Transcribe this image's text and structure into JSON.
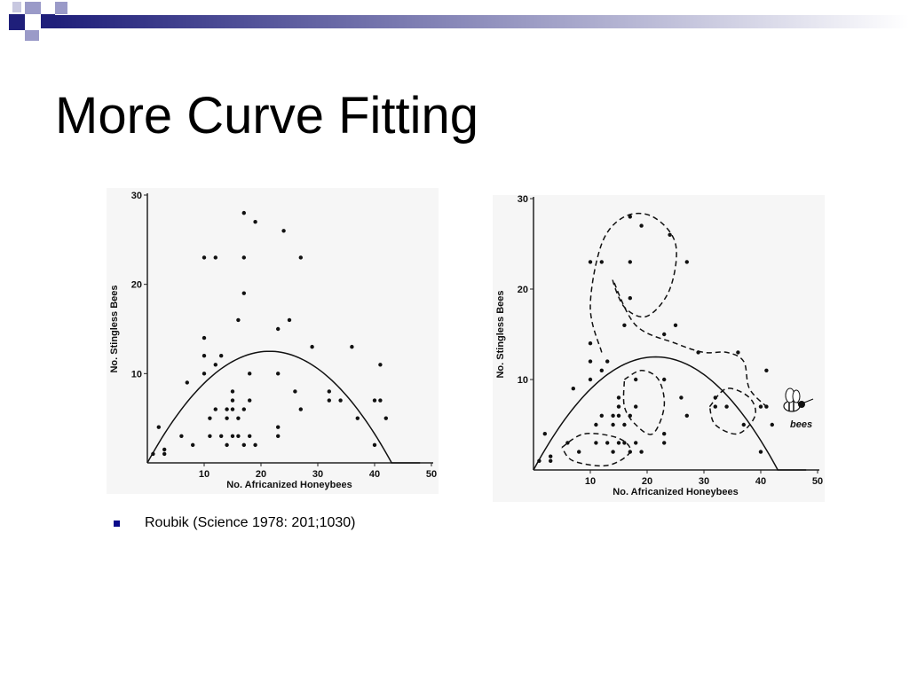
{
  "slide": {
    "title": "More Curve Fitting",
    "bullet_text": "Roubik (Science 1978: 201;1030)",
    "colors": {
      "accent_dark": "#1f1f7a",
      "accent_light": "#9a9ac8",
      "bullet": "#0a0a8a"
    }
  },
  "chart_data": [
    {
      "type": "scatter",
      "title": "",
      "xlabel": "No. Africanized Honeybees",
      "ylabel": "No. Stingless Bees",
      "xlim": [
        0,
        50
      ],
      "ylim": [
        0,
        30
      ],
      "x_ticks": [
        "10",
        "20",
        "30",
        "40",
        "50"
      ],
      "y_ticks": [
        "10",
        "20",
        "30"
      ],
      "series": [
        {
          "type": "scatter",
          "points": [
            [
              1,
              1
            ],
            [
              2,
              4
            ],
            [
              3,
              1
            ],
            [
              3,
              1.5
            ],
            [
              6,
              3
            ],
            [
              7,
              9
            ],
            [
              8,
              2
            ],
            [
              10,
              10
            ],
            [
              10,
              12
            ],
            [
              10,
              14
            ],
            [
              10,
              23
            ],
            [
              11,
              3
            ],
            [
              11,
              5
            ],
            [
              12,
              6
            ],
            [
              12,
              11
            ],
            [
              12,
              23
            ],
            [
              13,
              12
            ],
            [
              13,
              3
            ],
            [
              14,
              2
            ],
            [
              14,
              5
            ],
            [
              14,
              6
            ],
            [
              15,
              3
            ],
            [
              15,
              6
            ],
            [
              15,
              7
            ],
            [
              15,
              8
            ],
            [
              16,
              3
            ],
            [
              16,
              5
            ],
            [
              16,
              16
            ],
            [
              17,
              2
            ],
            [
              17,
              6
            ],
            [
              17,
              19
            ],
            [
              17,
              23
            ],
            [
              17,
              28
            ],
            [
              18,
              3
            ],
            [
              18,
              7
            ],
            [
              18,
              10
            ],
            [
              19,
              2
            ],
            [
              19,
              27
            ],
            [
              23,
              3
            ],
            [
              23,
              4
            ],
            [
              23,
              10
            ],
            [
              23,
              15
            ],
            [
              24,
              26
            ],
            [
              25,
              16
            ],
            [
              26,
              8
            ],
            [
              27,
              6
            ],
            [
              27,
              23
            ],
            [
              29,
              13
            ],
            [
              32,
              7
            ],
            [
              32,
              8
            ],
            [
              34,
              7
            ],
            [
              36,
              13
            ],
            [
              37,
              5
            ],
            [
              40,
              2
            ],
            [
              40,
              7
            ],
            [
              41,
              7
            ],
            [
              41,
              11
            ],
            [
              42,
              5
            ]
          ]
        },
        {
          "type": "line",
          "curve": "parabola",
          "vertex": [
            21.5,
            12.5
          ],
          "x_range": [
            0,
            48
          ]
        }
      ]
    },
    {
      "type": "scatter",
      "title": "",
      "xlabel": "No. Africanized Honeybees",
      "ylabel": "No. Stingless Bees",
      "xlim": [
        0,
        50
      ],
      "ylim": [
        0,
        30
      ],
      "x_ticks": [
        "10",
        "20",
        "30",
        "40",
        "50"
      ],
      "y_ticks": [
        "10",
        "20",
        "30"
      ],
      "annotation": "bees",
      "series": [
        {
          "type": "scatter",
          "points": [
            [
              1,
              1
            ],
            [
              2,
              4
            ],
            [
              3,
              1
            ],
            [
              3,
              1.5
            ],
            [
              6,
              3
            ],
            [
              7,
              9
            ],
            [
              8,
              2
            ],
            [
              10,
              10
            ],
            [
              10,
              12
            ],
            [
              10,
              14
            ],
            [
              10,
              23
            ],
            [
              11,
              3
            ],
            [
              11,
              5
            ],
            [
              12,
              6
            ],
            [
              12,
              11
            ],
            [
              12,
              23
            ],
            [
              13,
              12
            ],
            [
              13,
              3
            ],
            [
              14,
              2
            ],
            [
              14,
              5
            ],
            [
              14,
              6
            ],
            [
              15,
              3
            ],
            [
              15,
              6
            ],
            [
              15,
              7
            ],
            [
              15,
              8
            ],
            [
              16,
              3
            ],
            [
              16,
              5
            ],
            [
              16,
              16
            ],
            [
              17,
              2
            ],
            [
              17,
              6
            ],
            [
              17,
              19
            ],
            [
              17,
              23
            ],
            [
              17,
              28
            ],
            [
              18,
              3
            ],
            [
              18,
              7
            ],
            [
              18,
              10
            ],
            [
              19,
              2
            ],
            [
              19,
              27
            ],
            [
              23,
              3
            ],
            [
              23,
              4
            ],
            [
              23,
              10
            ],
            [
              23,
              15
            ],
            [
              24,
              26
            ],
            [
              25,
              16
            ],
            [
              26,
              8
            ],
            [
              27,
              6
            ],
            [
              27,
              23
            ],
            [
              29,
              13
            ],
            [
              32,
              7
            ],
            [
              32,
              8
            ],
            [
              34,
              7
            ],
            [
              36,
              13
            ],
            [
              37,
              5
            ],
            [
              40,
              2
            ],
            [
              40,
              7
            ],
            [
              41,
              7
            ],
            [
              41,
              11
            ],
            [
              42,
              5
            ]
          ]
        },
        {
          "type": "line",
          "curve": "parabola",
          "vertex": [
            21.5,
            12.5
          ],
          "x_range": [
            0,
            48
          ]
        },
        {
          "type": "line",
          "style": "dashed",
          "shape": "figure-eight loop",
          "points": [
            [
              12,
              13
            ],
            [
              10,
              18
            ],
            [
              12,
              25
            ],
            [
              16,
              28
            ],
            [
              21,
              28
            ],
            [
              25,
              25
            ],
            [
              24,
              20
            ],
            [
              20,
              17
            ],
            [
              16,
              18
            ],
            [
              14,
              21
            ],
            [
              18,
              16
            ],
            [
              25,
              14
            ],
            [
              30,
              13
            ],
            [
              34,
              13
            ],
            [
              37,
              12
            ],
            [
              38,
              9
            ],
            [
              41,
              7
            ]
          ]
        },
        {
          "type": "line",
          "style": "dashed",
          "shape": "loop",
          "points": [
            [
              16,
              10
            ],
            [
              19,
              11
            ],
            [
              22,
              10
            ],
            [
              23,
              7
            ],
            [
              21,
              4
            ],
            [
              18,
              5
            ],
            [
              16,
              7
            ],
            [
              16,
              10
            ]
          ]
        },
        {
          "type": "line",
          "style": "dashed",
          "shape": "ellipse",
          "points": [
            [
              5,
              2.5
            ],
            [
              9,
              4
            ],
            [
              15,
              3.5
            ],
            [
              17,
              2
            ],
            [
              13,
              0.5
            ],
            [
              7,
              1
            ],
            [
              5,
              2.5
            ]
          ]
        },
        {
          "type": "line",
          "style": "dashed",
          "shape": "ellipse",
          "points": [
            [
              31,
              7
            ],
            [
              34,
              9
            ],
            [
              38,
              8
            ],
            [
              39,
              6
            ],
            [
              36,
              4
            ],
            [
              32,
              5
            ],
            [
              31,
              7
            ]
          ]
        }
      ]
    }
  ]
}
